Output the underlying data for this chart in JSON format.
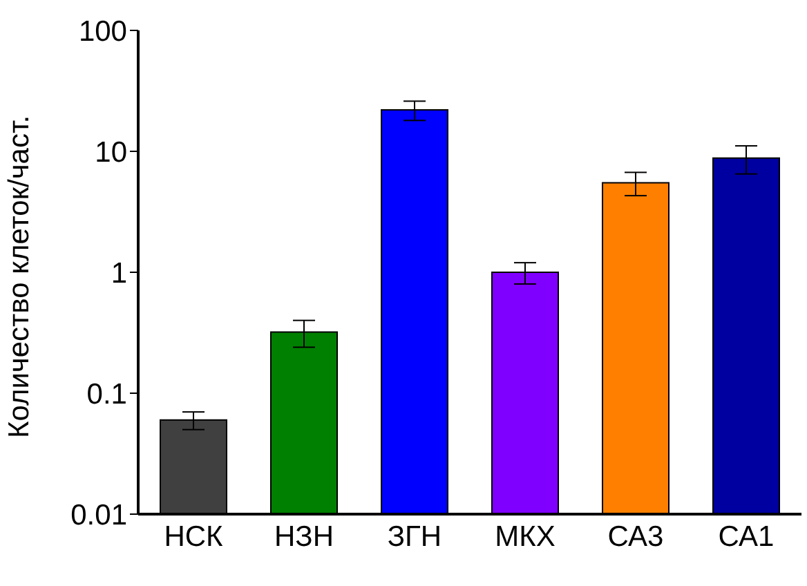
{
  "chart_data": {
    "type": "bar",
    "ylabel": "Количество клеток/част.",
    "categories": [
      "НСК",
      "НЗН",
      "ЗГН",
      "МКХ",
      "СА3",
      "СА1"
    ],
    "values": [
      0.06,
      0.32,
      22,
      1.0,
      5.5,
      8.8
    ],
    "errors": [
      0.01,
      0.08,
      4,
      0.2,
      1.2,
      2.3
    ],
    "colors": [
      "#404040",
      "#008000",
      "#0000ff",
      "#8000ff",
      "#ff8000",
      "#0000a0"
    ],
    "log": true,
    "ylim": [
      0.01,
      100
    ],
    "yticks": [
      0.01,
      0.1,
      1,
      10,
      100
    ],
    "grid": false
  }
}
